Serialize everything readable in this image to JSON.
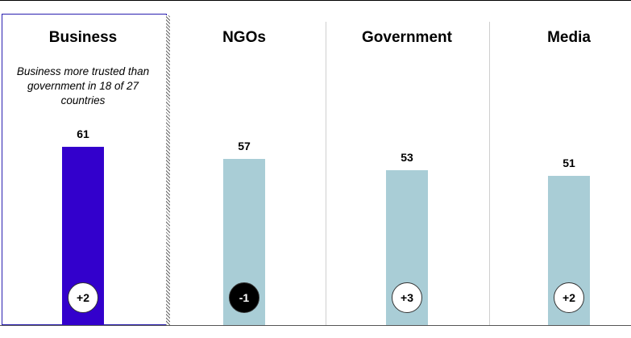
{
  "chart_data": {
    "type": "bar",
    "categories": [
      "Business",
      "NGOs",
      "Government",
      "Media"
    ],
    "values": [
      61,
      57,
      53,
      51
    ],
    "changes": [
      "+2",
      "-1",
      "+3",
      "+2"
    ],
    "note": "Business more trusted than government in 18 of 27 countries",
    "ylim": [
      0,
      100
    ]
  },
  "colors": {
    "highlight_bar": "#3300cc",
    "bar": "#a9cdd6",
    "badge_positive_bg": "#ffffff",
    "badge_positive_text": "#000000",
    "badge_negative_bg": "#000000",
    "badge_negative_text": "#ffffff"
  }
}
